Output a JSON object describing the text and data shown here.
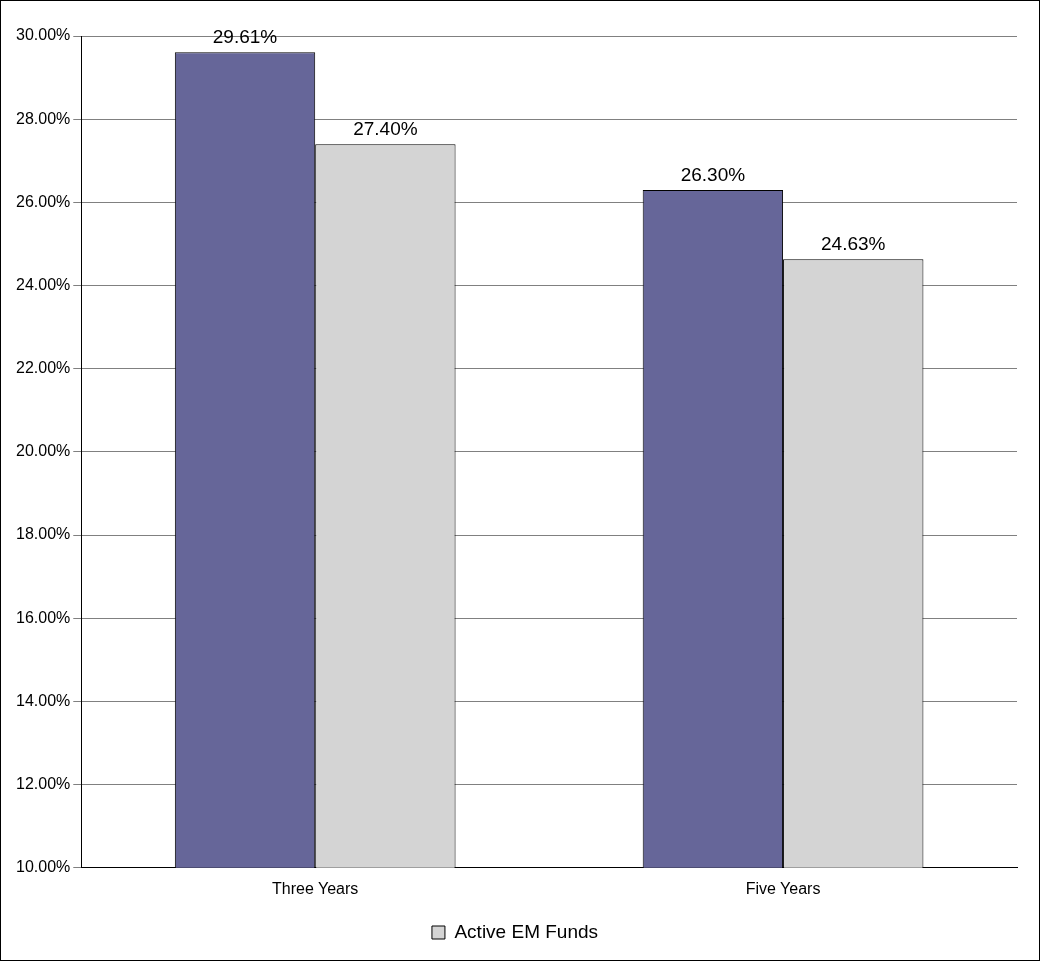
{
  "chart_data": {
    "type": "bar",
    "categories": [
      "Three Years",
      "Five Years"
    ],
    "series": [
      {
        "color": "#666699",
        "values": [
          29.61,
          26.3
        ],
        "value_labels": [
          "29.61%",
          "26.30%"
        ]
      },
      {
        "name": "Active EM Funds",
        "color": "#d4d4d4",
        "values": [
          27.4,
          24.63
        ],
        "value_labels": [
          "27.40%",
          "24.63%"
        ]
      }
    ],
    "ylim": [
      10,
      30
    ],
    "yticks": [
      {
        "value": 10,
        "label": "10.00%"
      },
      {
        "value": 12,
        "label": "12.00%"
      },
      {
        "value": 14,
        "label": "14.00%"
      },
      {
        "value": 16,
        "label": "16.00%"
      },
      {
        "value": 18,
        "label": "18.00%"
      },
      {
        "value": 20,
        "label": "20.00%"
      },
      {
        "value": 22,
        "label": "22.00%"
      },
      {
        "value": 24,
        "label": "24.00%"
      },
      {
        "value": 26,
        "label": "26.00%"
      },
      {
        "value": 28,
        "label": "28.00%"
      },
      {
        "value": 30,
        "label": "30.00%"
      }
    ],
    "grid": "y",
    "legend": "bottom"
  }
}
